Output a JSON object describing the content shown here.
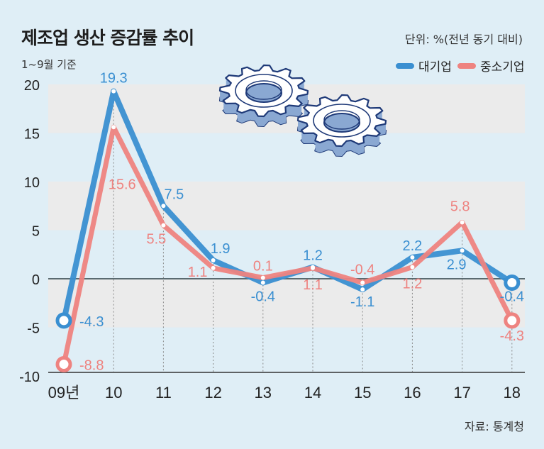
{
  "title": "제조업 생산 증감률 추이",
  "subtitle": "1~9월 기준",
  "unit": "단위: %(전년 동기 대비)",
  "source": "자료: 통계청",
  "colors": {
    "large": "#3a8fd1",
    "small": "#ee8380",
    "background": "#dfeef6",
    "band": "#ebebeb"
  },
  "legend": [
    {
      "label": "대기업",
      "color": "#3a8fd1"
    },
    {
      "label": "중소기업",
      "color": "#ee8380"
    }
  ],
  "chart_data": {
    "type": "line",
    "categories": [
      "09년",
      "10",
      "11",
      "12",
      "13",
      "14",
      "15",
      "16",
      "17",
      "18"
    ],
    "series": [
      {
        "name": "대기업",
        "color": "#3a8fd1",
        "values": [
          -4.3,
          19.3,
          7.5,
          1.9,
          -0.4,
          1.2,
          -1.1,
          2.2,
          2.9,
          -0.4
        ],
        "labels": [
          "-4.3",
          "19.3",
          "7.5",
          "1.9",
          "-0.4",
          "1.2",
          "-1.1",
          "2.2",
          "2.9",
          "-0.4"
        ]
      },
      {
        "name": "중소기업",
        "color": "#ee8380",
        "values": [
          -8.8,
          15.6,
          5.5,
          1.1,
          0.1,
          1.1,
          -0.4,
          1.2,
          5.8,
          -4.3
        ],
        "labels": [
          "-8.8",
          "15.6",
          "5.5",
          "1.1",
          "0.1",
          "1.1",
          "-0.4",
          "1.2",
          "5.8",
          "-4.3"
        ]
      }
    ],
    "yticks": [
      "20",
      "15",
      "10",
      "5",
      "0",
      "-5",
      "-10"
    ],
    "ylim": [
      -10,
      20
    ],
    "grid": "alternating horizontal bands",
    "legend_position": "top-right",
    "decoration": "gear-illustration"
  }
}
